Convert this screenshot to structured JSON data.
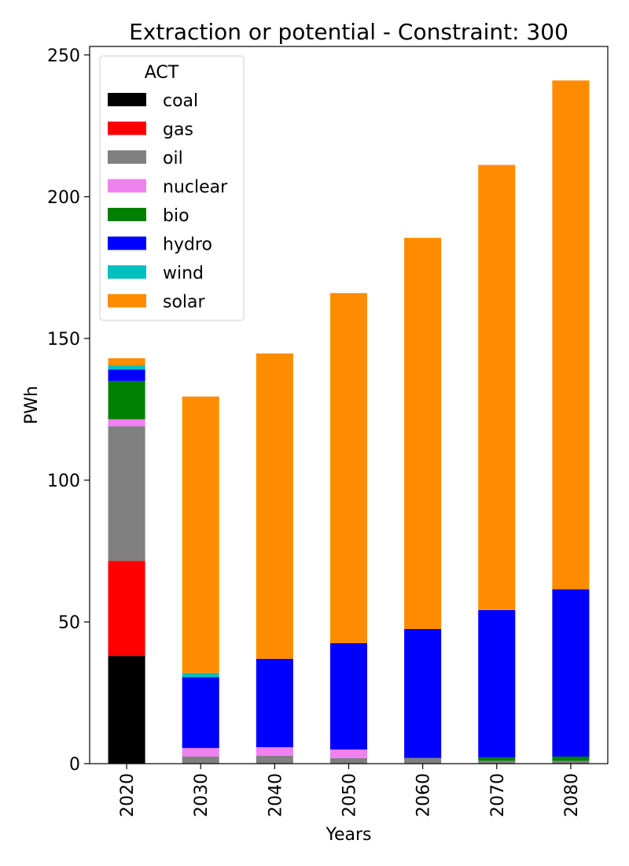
{
  "chart_data": {
    "type": "bar",
    "stacked": true,
    "title": "Extraction or potential - Constraint: 300",
    "xlabel": "Years",
    "ylabel": "PWh",
    "ylim": [
      0,
      253
    ],
    "yticks": [
      0,
      50,
      100,
      150,
      200,
      250
    ],
    "categories": [
      "2020",
      "2030",
      "2040",
      "2050",
      "2060",
      "2070",
      "2080"
    ],
    "legend": {
      "title": "ACT",
      "placement": "top-left"
    },
    "grid": false,
    "series": [
      {
        "name": "coal",
        "color": "#000000",
        "values": [
          38,
          0,
          0,
          0,
          0,
          0,
          0
        ]
      },
      {
        "name": "gas",
        "color": "#ff0000",
        "values": [
          33.5,
          0,
          0,
          0,
          0,
          0,
          0
        ]
      },
      {
        "name": "oil",
        "color": "#808080",
        "values": [
          47.5,
          2.5,
          2.8,
          2,
          2,
          1,
          1
        ]
      },
      {
        "name": "nuclear",
        "color": "#ee82ee",
        "values": [
          2.5,
          3,
          3,
          3,
          0,
          0,
          0
        ]
      },
      {
        "name": "bio",
        "color": "#008000",
        "values": [
          13.5,
          0,
          0,
          0,
          0,
          1.2,
          1.5
        ]
      },
      {
        "name": "hydro",
        "color": "#0000ff",
        "values": [
          4,
          25,
          31.2,
          37.5,
          45.5,
          52,
          59
        ]
      },
      {
        "name": "wind",
        "color": "#00bfbf",
        "values": [
          1.5,
          1.5,
          0,
          0,
          0,
          0,
          0
        ]
      },
      {
        "name": "solar",
        "color": "#ff8c00",
        "values": [
          2.5,
          97.5,
          107.7,
          123.5,
          138,
          157,
          179.5
        ]
      }
    ]
  }
}
